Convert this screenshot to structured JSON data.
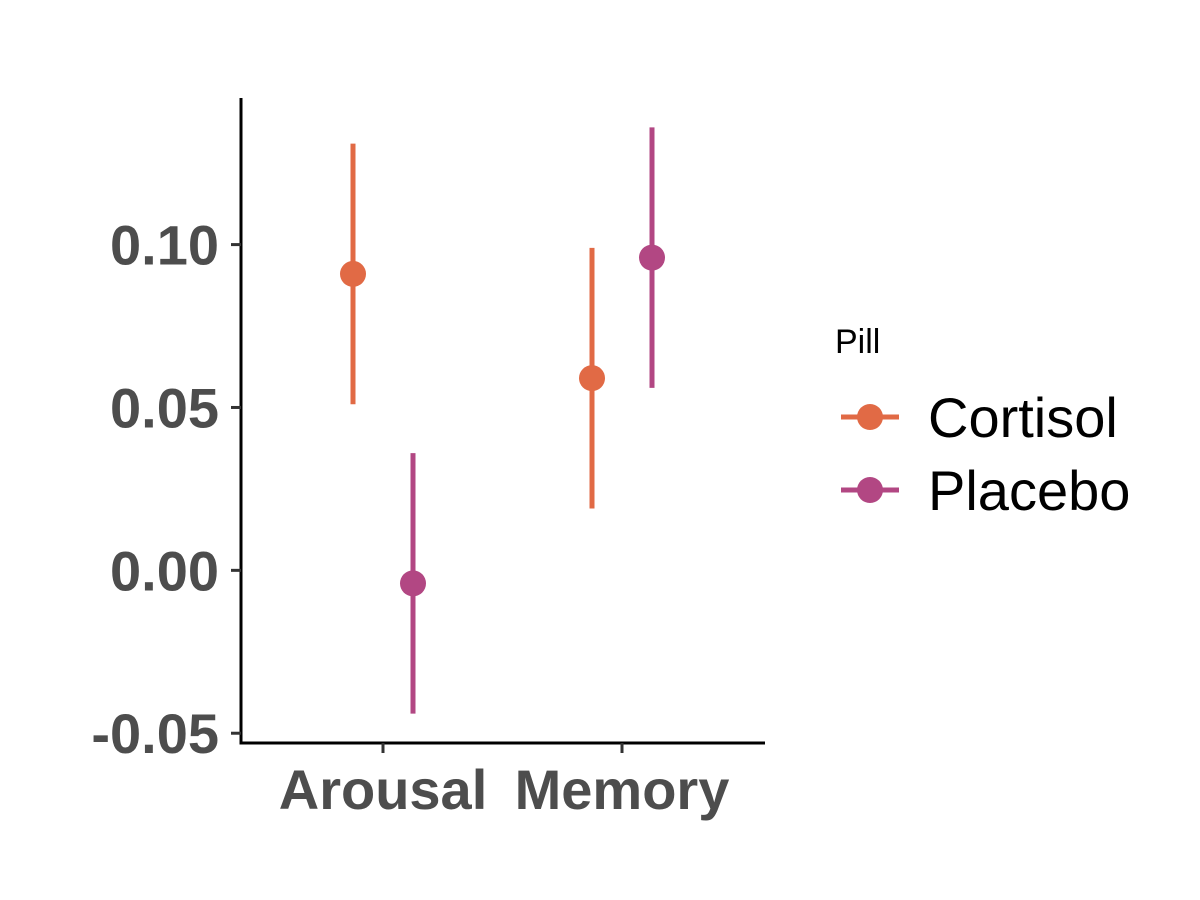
{
  "chart_data": {
    "type": "scatter",
    "title": "",
    "xlabel": "",
    "ylabel": "",
    "categories": [
      "Arousal",
      "Memory"
    ],
    "ylim": [
      -0.053,
      0.145
    ],
    "yticks": [
      "0.10",
      "0.05",
      "0.00",
      "-0.05"
    ],
    "ytick_values": [
      0.1,
      0.05,
      0.0,
      -0.05
    ],
    "grid": false,
    "legend": {
      "title": "Pill",
      "position": "right"
    },
    "series": [
      {
        "name": "Cortisol",
        "color": "#E16A45",
        "values": [
          0.091,
          0.059
        ],
        "lower": [
          0.051,
          0.019
        ],
        "upper": [
          0.131,
          0.099
        ]
      },
      {
        "name": "Placebo",
        "color": "#B24783",
        "values": [
          -0.004,
          0.096
        ],
        "lower": [
          -0.044,
          0.056
        ],
        "upper": [
          0.036,
          0.136
        ]
      }
    ]
  }
}
